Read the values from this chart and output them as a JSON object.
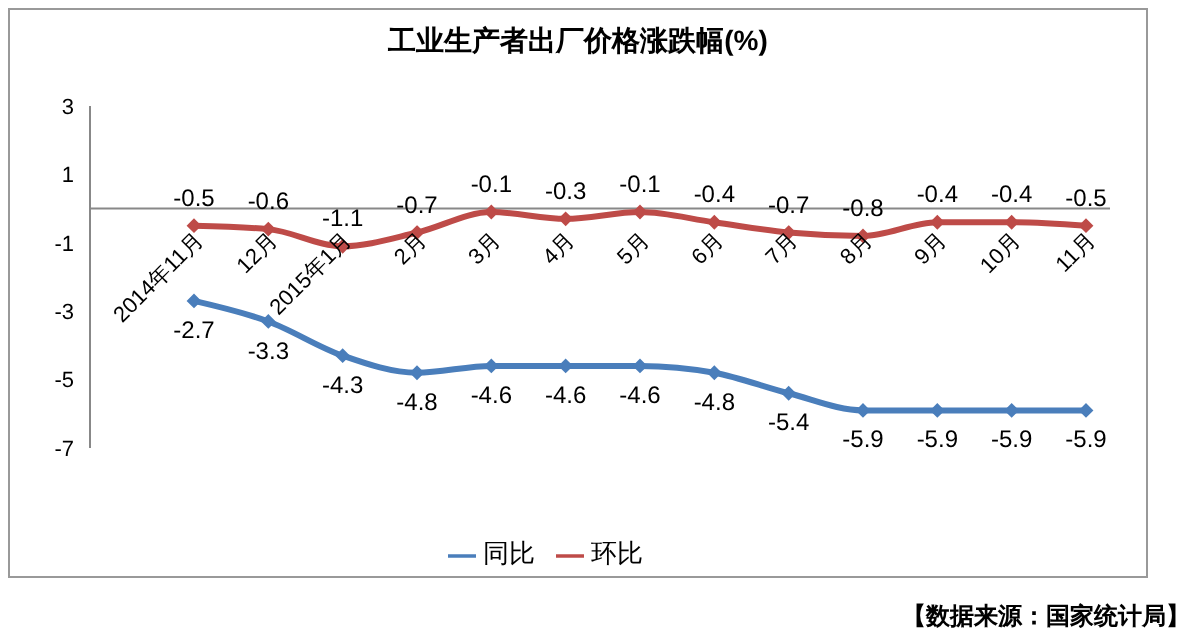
{
  "chart_data": {
    "type": "line",
    "title": "工业生产者出厂价格涨跌幅(%)",
    "categories": [
      "2014年11月",
      "12月",
      "2015年1月",
      "2月",
      "3月",
      "4月",
      "5月",
      "6月",
      "7月",
      "8月",
      "9月",
      "10月",
      "11月"
    ],
    "series": [
      {
        "name": "同比",
        "color": "#4a7ebb",
        "values": [
          -2.7,
          -3.3,
          -4.3,
          -4.8,
          -4.6,
          -4.6,
          -4.6,
          -4.8,
          -5.4,
          -5.9,
          -5.9,
          -5.9,
          -5.9
        ]
      },
      {
        "name": "环比",
        "color": "#be4b48",
        "values": [
          -0.5,
          -0.6,
          -1.1,
          -0.7,
          -0.1,
          -0.3,
          -0.1,
          -0.4,
          -0.7,
          -0.8,
          -0.4,
          -0.4,
          -0.5
        ]
      }
    ],
    "ylim": [
      -7,
      3
    ],
    "yticks": [
      -7,
      -5,
      -3,
      -1,
      1,
      3
    ],
    "data_labels": true,
    "grid": false,
    "legend": "bottom",
    "marker": "diamond",
    "line_style": "solid",
    "annotations": [
      "【数据来源：国家统计局】"
    ]
  }
}
